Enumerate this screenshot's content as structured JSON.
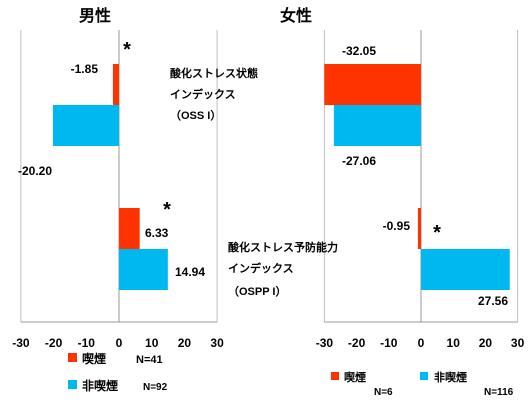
{
  "category_labels": [
    {
      "lines": [
        "酸化ストレス状態",
        "インデックス",
        "（OSS I）"
      ]
    },
    {
      "lines": [
        "酸化ストレス予防能力",
        "インデックス",
        "（OSPP I）"
      ]
    }
  ],
  "chart_data": [
    {
      "type": "bar",
      "orientation": "horizontal",
      "title": "男性",
      "xlim": [
        -30,
        30
      ],
      "xticks": [
        -30,
        -20,
        -10,
        0,
        10,
        20,
        30
      ],
      "grid": false,
      "legend": "bottom",
      "significance_mark": "*",
      "significant": [
        true,
        true
      ],
      "series": [
        {
          "name": "喫煙",
          "color": "#FF3300",
          "n": "N=41",
          "values": [
            -1.85,
            6.33
          ]
        },
        {
          "name": "非喫煙",
          "color": "#00B8F0",
          "n": "N=92",
          "values": [
            -20.2,
            14.94
          ]
        }
      ]
    },
    {
      "type": "bar",
      "orientation": "horizontal",
      "title": "女性",
      "xlim": [
        -30,
        30
      ],
      "xticks": [
        -30,
        -20,
        -10,
        0,
        10,
        20,
        30
      ],
      "grid": false,
      "legend": "bottom",
      "significance_mark": "*",
      "significant": [
        false,
        true
      ],
      "series": [
        {
          "name": "喫煙",
          "color": "#FF3300",
          "n": "N=6",
          "values": [
            -32.05,
            -0.95
          ]
        },
        {
          "name": "非喫煙",
          "color": "#00B8F0",
          "n": "N=116",
          "values": [
            -27.06,
            27.56
          ]
        }
      ]
    }
  ]
}
